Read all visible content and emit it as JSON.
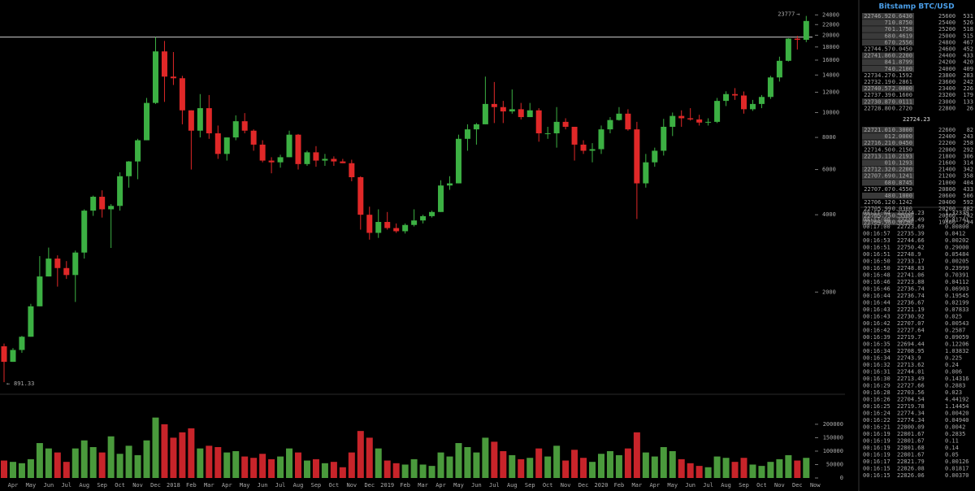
{
  "chart_data": [
    {
      "type": "candlestick",
      "log_scale": true,
      "grid": false,
      "up_color": "#3cb043",
      "down_color": "#e02828",
      "hline": 19666,
      "hline_color": "#cfcfcf",
      "high_label": 23777,
      "low_label": 891.33,
      "categories": [
        null,
        "Apr",
        null,
        "May",
        null,
        "Jun",
        null,
        "Jul",
        null,
        "Aug",
        null,
        "Sep",
        null,
        "Oct",
        null,
        "Nov",
        null,
        "Dec",
        null,
        "2018",
        null,
        "Feb",
        null,
        "Mar",
        null,
        "Apr",
        null,
        "May",
        null,
        "Jun",
        null,
        "Jul",
        null,
        "Aug",
        null,
        "Sep",
        null,
        "Oct",
        null,
        "Nov",
        null,
        "Dec",
        null,
        "2019",
        null,
        "Feb",
        null,
        "Mar",
        null,
        "Apr",
        null,
        "May",
        null,
        "Jun",
        null,
        "Jul",
        null,
        "Aug",
        null,
        "Sep",
        null,
        "Oct",
        null,
        "Nov",
        null,
        "Dec",
        null,
        "2020",
        null,
        "Feb",
        null,
        "Mar",
        null,
        "Apr",
        null,
        "May",
        null,
        "Jun",
        null,
        "Jul",
        null,
        "Aug",
        null,
        "Sep",
        null,
        "Oct",
        null,
        "Nov",
        null,
        "Dec",
        null,
        "Now"
      ],
      "open": [
        1230,
        1070,
        1190,
        1340,
        1760,
        2300,
        2700,
        2480,
        2330,
        2850,
        4150,
        4700,
        4200,
        4330,
        5650,
        6450,
        7800,
        10900,
        17300,
        13800,
        13600,
        10200,
        8500,
        10400,
        8300,
        6900,
        8000,
        9250,
        8500,
        7500,
        6500,
        6400,
        6700,
        8200,
        6300,
        7000,
        6500,
        6600,
        6450,
        6350,
        5600,
        4000,
        3400,
        3750,
        3550,
        3450,
        3650,
        3800,
        3950,
        4100,
        5200,
        5300,
        7900,
        8600,
        9000,
        10800,
        10500,
        10100,
        10300,
        9600,
        10200,
        8300,
        8300,
        9200,
        8800,
        7500,
        7100,
        7200,
        8600,
        9350,
        9900,
        8600,
        5300,
        6400,
        7100,
        8800,
        9700,
        9500,
        9400,
        9140,
        9200,
        11100,
        11800,
        11650,
        10300,
        10800,
        11500,
        13700,
        15900,
        19400,
        19200,
        null
      ],
      "high": [
        1260,
        1210,
        1350,
        1800,
        2760,
        2980,
        2780,
        2640,
        2900,
        4200,
        4750,
        4980,
        4400,
        5850,
        6470,
        7900,
        11400,
        19666,
        19000,
        17200,
        13900,
        10200,
        11800,
        11700,
        8900,
        8000,
        9750,
        9950,
        8600,
        7800,
        6700,
        6850,
        8500,
        8250,
        7100,
        7400,
        6900,
        6750,
        6600,
        6550,
        5650,
        4300,
        4200,
        4100,
        3700,
        3700,
        4200,
        4000,
        4150,
        5450,
        5650,
        8200,
        9000,
        9100,
        13800,
        13150,
        11100,
        12300,
        10900,
        10900,
        10400,
        8800,
        10500,
        9500,
        8800,
        7800,
        7600,
        8900,
        9600,
        10500,
        10300,
        9200,
        6900,
        7300,
        9450,
        10000,
        10200,
        10400,
        9800,
        9500,
        11400,
        12100,
        12450,
        12080,
        11200,
        11700,
        13900,
        16500,
        19480,
        19900,
        23777,
        null
      ],
      "low": [
        891.33,
        1070,
        1160,
        1340,
        1760,
        2300,
        2100,
        2250,
        1830,
        2700,
        3960,
        3900,
        2970,
        4150,
        5100,
        5500,
        7800,
        10800,
        11000,
        12800,
        9000,
        6000,
        8000,
        7900,
        6600,
        6500,
        7800,
        8300,
        7100,
        6400,
        5800,
        6100,
        6700,
        6000,
        6200,
        6150,
        6200,
        6200,
        6350,
        5400,
        3500,
        3200,
        3250,
        3500,
        3400,
        3380,
        3600,
        3700,
        3900,
        4100,
        5000,
        5300,
        7100,
        7500,
        9000,
        9100,
        9100,
        9900,
        9400,
        9600,
        7700,
        7900,
        7300,
        8600,
        6500,
        6900,
        6400,
        6900,
        8300,
        9300,
        8500,
        3850,
        5100,
        6150,
        6800,
        8100,
        8800,
        9300,
        8900,
        8900,
        9100,
        10600,
        11200,
        9900,
        10150,
        10400,
        11300,
        13200,
        15800,
        17600,
        18800,
        null
      ],
      "close": [
        1070,
        1190,
        1340,
        1760,
        2300,
        2700,
        2480,
        2330,
        2850,
        4150,
        4700,
        4200,
        4330,
        5650,
        6450,
        7800,
        10900,
        17300,
        13800,
        13600,
        10200,
        8500,
        10400,
        8300,
        6900,
        8000,
        9250,
        8500,
        7500,
        6500,
        6400,
        6700,
        8200,
        6300,
        7000,
        6500,
        6600,
        6450,
        6350,
        5600,
        4000,
        3400,
        3750,
        3550,
        3450,
        3650,
        3800,
        3950,
        4100,
        5200,
        5300,
        7900,
        8600,
        9000,
        10800,
        10500,
        10100,
        10300,
        9600,
        10200,
        8300,
        8300,
        9200,
        8800,
        7500,
        7100,
        7200,
        8600,
        9350,
        9900,
        8600,
        5300,
        6400,
        7100,
        8800,
        9700,
        9500,
        9400,
        9140,
        9200,
        11100,
        11800,
        11650,
        10300,
        10800,
        11500,
        13700,
        15900,
        19400,
        19200,
        22724.23,
        null
      ],
      "ylim": [
        800,
        25500
      ],
      "yticks": [
        2000,
        4000,
        6000,
        8000,
        10000,
        12000,
        14000,
        16000,
        18000,
        20000,
        22000,
        24000
      ]
    },
    {
      "type": "bar",
      "up_color": "#4a9a3c",
      "down_color": "#c8242a",
      "values": [
        65000,
        60000,
        55000,
        70000,
        130000,
        110000,
        95000,
        60000,
        110000,
        140000,
        115000,
        95000,
        155000,
        90000,
        120000,
        85000,
        140000,
        225000,
        200000,
        150000,
        170000,
        185000,
        110000,
        120000,
        115000,
        95000,
        100000,
        80000,
        75000,
        90000,
        70000,
        80000,
        110000,
        95000,
        65000,
        70000,
        55000,
        60000,
        40000,
        95000,
        175000,
        150000,
        110000,
        65000,
        55000,
        50000,
        70000,
        50000,
        45000,
        95000,
        80000,
        130000,
        115000,
        95000,
        150000,
        135000,
        100000,
        85000,
        70000,
        75000,
        110000,
        80000,
        120000,
        65000,
        105000,
        75000,
        60000,
        90000,
        100000,
        85000,
        110000,
        170000,
        95000,
        80000,
        115000,
        100000,
        70000,
        55000,
        45000,
        40000,
        80000,
        75000,
        60000,
        75000,
        50000,
        45000,
        60000,
        70000,
        85000,
        65000,
        75000,
        null
      ],
      "ylim": [
        0,
        230000
      ],
      "yticks": [
        0,
        50000,
        100000,
        150000,
        200000
      ]
    }
  ],
  "order_book": {
    "title": "Bitstamp BTC/USD",
    "last": 22724.23,
    "last_color": "#33ee33",
    "asks": [
      {
        "cells": [
          "22746.92",
          "0.6430",
          25600,
          531
        ]
      },
      {
        "cells": [
          "71",
          "0.8750",
          25400,
          526
        ]
      },
      {
        "cells": [
          "70",
          "1.1758",
          25200,
          518
        ]
      },
      {
        "cells": [
          "68",
          "0.4619",
          25000,
          515
        ]
      },
      {
        "cells": [
          "67",
          "0.2556",
          24800,
          467
        ]
      },
      {
        "cells": [
          "22744.57",
          "0.0450",
          24600,
          452
        ],
        "dim": true
      },
      {
        "cells": [
          "22741.86",
          "0.2200",
          24400,
          433
        ]
      },
      {
        "cells": [
          "84",
          "1.8799",
          24200,
          420
        ]
      },
      {
        "cells": [
          "74",
          "0.2100",
          24000,
          409
        ]
      },
      {
        "cells": [
          "22734.27",
          "0.1592",
          23800,
          283
        ],
        "dim": true
      },
      {
        "cells": [
          "22732.19",
          "0.2861",
          23600,
          242
        ],
        "dim": true
      },
      {
        "cells": [
          "22740.57",
          "2.0000",
          23400,
          226
        ]
      },
      {
        "cells": [
          "22737.39",
          "0.1600",
          23200,
          179
        ],
        "dim": true
      },
      {
        "cells": [
          "22730.87",
          "0.0111",
          23000,
          133
        ]
      },
      {
        "cells": [
          "22728.80",
          "0.2720",
          22800,
          26
        ],
        "dim": true
      }
    ],
    "bids": [
      {
        "cells": [
          "22721.01",
          "0.3000",
          22600,
          82
        ]
      },
      {
        "cells": [
          "01",
          "2.0000",
          22400,
          243
        ]
      },
      {
        "cells": [
          "22716.21",
          "0.0450",
          22200,
          258
        ]
      },
      {
        "cells": [
          "22714.50",
          "0.2150",
          22000,
          292
        ],
        "dim": true
      },
      {
        "cells": [
          "22713.11",
          "0.2193",
          21800,
          306
        ]
      },
      {
        "cells": [
          "01",
          "0.1293",
          21600,
          314
        ]
      },
      {
        "cells": [
          "22712.32",
          "0.2200",
          21400,
          342
        ]
      },
      {
        "cells": [
          "22707.69",
          "0.1241",
          21200,
          358
        ]
      },
      {
        "cells": [
          "68",
          "0.8745",
          21000,
          404
        ]
      },
      {
        "cells": [
          "22707.07",
          "0.4550",
          20800,
          433
        ],
        "dim": true
      },
      {
        "cells": [
          "48",
          "0.1000",
          20600,
          506
        ]
      },
      {
        "cells": [
          "22706.12",
          "0.1242",
          20400,
          592
        ],
        "dim": true
      },
      {
        "cells": [
          "22705.99",
          "0.0300",
          20200,
          682
        ],
        "dim": true
      },
      {
        "cells": [
          "22705.75",
          "0.5500",
          20000,
          742
        ]
      },
      {
        "cells": [
          "22704.98",
          "0.8750",
          19800,
          794
        ]
      }
    ]
  },
  "trades": [
    {
      "time": "00:17:04",
      "price": "22724.23",
      "amount": "1.32339",
      "color": "#4caf50"
    },
    {
      "time": "00:17:00",
      "price": "22724.49",
      "amount": "0.01741",
      "color": "#e53935"
    },
    {
      "time": "00:17:00",
      "price": "22723.69",
      "amount": "0.00800",
      "color": "#e53935"
    },
    {
      "time": "00:16:57",
      "price": "22735.39",
      "amount": "0.0412",
      "color": "#4caf50"
    },
    {
      "time": "00:16:53",
      "price": "22744.66",
      "amount": "0.00202",
      "color": "#e53935"
    },
    {
      "time": "00:16:51",
      "price": "22750.42",
      "amount": "0.29000",
      "color": "#4caf50"
    },
    {
      "time": "00:16:51",
      "price": "22748.9",
      "amount": "0.05484",
      "color": "#4caf50"
    },
    {
      "time": "00:16:50",
      "price": "22733.17",
      "amount": "0.00205",
      "color": "#e53935"
    },
    {
      "time": "00:16:50",
      "price": "22748.83",
      "amount": "0.23999",
      "color": "#4caf50"
    },
    {
      "time": "00:16:48",
      "price": "22741.06",
      "amount": "0.70391",
      "color": "#4caf50"
    },
    {
      "time": "00:16:46",
      "price": "22723.88",
      "amount": "0.04112",
      "color": "#e53935"
    },
    {
      "time": "00:16:46",
      "price": "22736.74",
      "amount": "0.06903",
      "color": "#4caf50"
    },
    {
      "time": "00:16:44",
      "price": "22736.74",
      "amount": "0.19545",
      "color": "#4caf50"
    },
    {
      "time": "00:16:44",
      "price": "22736.67",
      "amount": "0.02199",
      "color": "#4caf50"
    },
    {
      "time": "00:16:43",
      "price": "22721.19",
      "amount": "0.07833",
      "color": "#e53935"
    },
    {
      "time": "00:16:43",
      "price": "22730.92",
      "amount": "0.025",
      "color": "#4caf50"
    },
    {
      "time": "00:16:42",
      "price": "22707.07",
      "amount": "0.00543",
      "color": "#e53935"
    },
    {
      "time": "00:16:42",
      "price": "22727.64",
      "amount": "0.2587",
      "color": "#4caf50"
    },
    {
      "time": "00:16:39",
      "price": "22719.7",
      "amount": "0.09059",
      "color": "#4caf50"
    },
    {
      "time": "00:16:35",
      "price": "22694.44",
      "amount": "0.12206",
      "color": "#e53935"
    },
    {
      "time": "00:16:34",
      "price": "22708.95",
      "amount": "1.03832",
      "color": "#4caf50"
    },
    {
      "time": "00:16:34",
      "price": "22743.9",
      "amount": "0.225",
      "color": "#4caf50"
    },
    {
      "time": "00:16:32",
      "price": "22713.62",
      "amount": "0.24",
      "color": "#e53935"
    },
    {
      "time": "00:16:31",
      "price": "22744.01",
      "amount": "0.006",
      "color": "#4caf50"
    },
    {
      "time": "00:16:30",
      "price": "22713.49",
      "amount": "0.14316",
      "color": "#e53935"
    },
    {
      "time": "00:16:29",
      "price": "22727.66",
      "amount": "0.2883",
      "color": "#4caf50"
    },
    {
      "time": "00:16:28",
      "price": "22703.56",
      "amount": "0.023",
      "color": "#e53935"
    },
    {
      "time": "00:16:26",
      "price": "22704.54",
      "amount": "4.44192",
      "color": "#e53935"
    },
    {
      "time": "00:16:25",
      "price": "22719.78",
      "amount": "1.14454",
      "color": "#e53935"
    },
    {
      "time": "00:16:24",
      "price": "22774.34",
      "amount": "0.00420",
      "color": "#e53935"
    },
    {
      "time": "00:16:22",
      "price": "22774.34",
      "amount": "0.04940",
      "color": "#e53935"
    },
    {
      "time": "00:16:21",
      "price": "22800.09",
      "amount": "0.0042",
      "color": "#4caf50"
    },
    {
      "time": "00:16:19",
      "price": "22801.67",
      "amount": "0.2835",
      "color": "#e53935"
    },
    {
      "time": "00:16:19",
      "price": "22801.67",
      "amount": "0.11",
      "color": "#e53935"
    },
    {
      "time": "00:16:19",
      "price": "22801.68",
      "amount": "0.14",
      "color": "#e53935"
    },
    {
      "time": "00:16:19",
      "price": "22801.67",
      "amount": "0.05",
      "color": "#e53935"
    },
    {
      "time": "00:16:17",
      "price": "22821.79",
      "amount": "0.00126",
      "color": "#e53935"
    },
    {
      "time": "00:16:15",
      "price": "22826.08",
      "amount": "0.01817",
      "color": "#4caf50"
    },
    {
      "time": "00:16:15",
      "price": "22826.06",
      "amount": "0.00370",
      "color": "#4caf50"
    }
  ]
}
